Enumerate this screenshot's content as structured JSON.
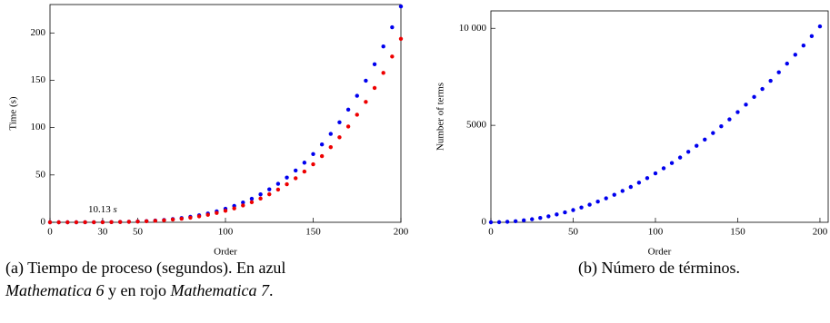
{
  "chart_data": [
    {
      "type": "scatter",
      "xlabel": "Order",
      "ylabel": "Time (s)",
      "x": [
        0,
        5,
        10,
        15,
        20,
        25,
        30,
        35,
        40,
        45,
        50,
        55,
        60,
        65,
        70,
        75,
        80,
        85,
        90,
        95,
        100,
        105,
        110,
        115,
        120,
        125,
        130,
        135,
        140,
        145,
        150,
        155,
        160,
        165,
        170,
        175,
        180,
        185,
        190,
        195,
        200
      ],
      "series": [
        {
          "color": "#0000ee",
          "values": [
            0,
            0,
            0,
            0,
            0.02,
            0.05,
            0.12,
            0.21,
            0.36,
            0.58,
            0.89,
            1.3,
            1.85,
            2.5,
            3.4,
            4.5,
            5.8,
            7.4,
            9.3,
            11.6,
            14.3,
            17.3,
            20.9,
            24.9,
            29.5,
            34.8,
            40.7,
            47.3,
            54.7,
            63,
            72.1,
            82.2,
            93.4,
            105.6,
            119,
            133.6,
            149.6,
            166.9,
            185.7,
            206,
            228
          ]
        },
        {
          "color": "#ee0000",
          "values": [
            0,
            0,
            0,
            0,
            0.02,
            0.04,
            0.1,
            0.18,
            0.31,
            0.49,
            0.76,
            1.1,
            1.6,
            2.1,
            2.9,
            3.8,
            4.9,
            6.3,
            7.9,
            9.9,
            12.2,
            14.7,
            17.8,
            21.2,
            25.1,
            29.6,
            34.6,
            40.2,
            46.5,
            53.6,
            61.3,
            69.9,
            79.4,
            89.8,
            101.2,
            113.6,
            127.2,
            141.9,
            157.8,
            175.1,
            193.8
          ]
        }
      ],
      "xlim": [
        0,
        200
      ],
      "ylim": [
        0,
        230
      ],
      "xticks": [
        0,
        30,
        50,
        100,
        150,
        200
      ],
      "yticks": [
        0,
        50,
        100,
        150,
        200
      ],
      "annotation": {
        "value": "10.13",
        "unit": "s"
      }
    },
    {
      "type": "scatter",
      "xlabel": "Order",
      "ylabel": "Number of terms",
      "x": [
        0,
        5,
        10,
        15,
        20,
        25,
        30,
        35,
        40,
        45,
        50,
        55,
        60,
        65,
        70,
        75,
        80,
        85,
        90,
        95,
        100,
        105,
        110,
        115,
        120,
        125,
        130,
        135,
        140,
        145,
        150,
        155,
        160,
        165,
        170,
        175,
        180,
        185,
        190,
        195,
        200
      ],
      "series": [
        {
          "color": "#0000ee",
          "values": [
            0,
            6,
            25,
            57,
            101,
            158,
            227,
            309,
            404,
            511,
            631,
            764,
            909,
            1067,
            1237,
            1420,
            1616,
            1824,
            2045,
            2279,
            2525,
            2784,
            3055,
            3339,
            3636,
            3945,
            4267,
            4602,
            4949,
            5309,
            5681,
            6066,
            6464,
            6874,
            7297,
            7733,
            8181,
            8642,
            9115,
            9601,
            10100
          ]
        }
      ],
      "xlim": [
        0,
        205
      ],
      "ylim": [
        0,
        10900
      ],
      "xticks": [
        0,
        50,
        100,
        150,
        200
      ],
      "yticks": [
        0,
        5000,
        {
          "value": 10000,
          "label": "10 000"
        }
      ]
    }
  ],
  "captions": [
    [
      "(a) Tiempo de proceso (segundos). En azul",
      "Mathematica 6",
      "y en rojo",
      "Mathematica 7",
      "."
    ],
    [
      "(b) Número de términos."
    ]
  ]
}
